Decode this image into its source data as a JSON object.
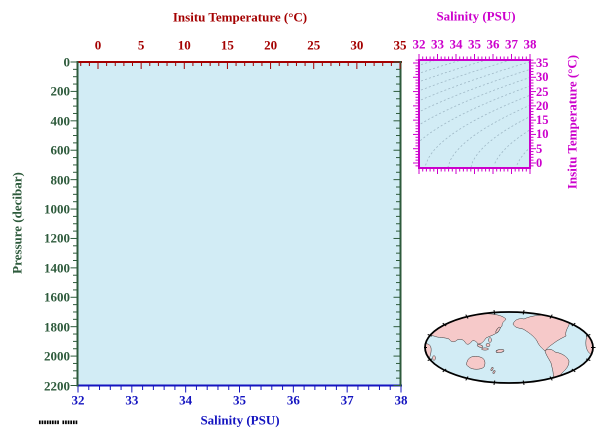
{
  "colors": {
    "temp": "#a40000",
    "sal": "#1414c0",
    "pres": "#2d5a3b",
    "ts": "#cc00cc",
    "plot_fill": "#d2ecf5",
    "contour": "#9fb8c6",
    "map_land": "#f6c9c9",
    "map_ocean": "#d2ecf5",
    "map_outline": "#000000"
  },
  "main_plot": {
    "top_axis": {
      "label": "Insitu Temperature (°C)",
      "ticks": [
        "0",
        "5",
        "10",
        "15",
        "20",
        "25",
        "30",
        "35"
      ]
    },
    "bottom_axis": {
      "label": "Salinity (PSU)",
      "ticks": [
        "32",
        "33",
        "34",
        "35",
        "36",
        "37",
        "38"
      ]
    },
    "left_axis": {
      "label": "Pressure (decibar)",
      "ticks": [
        "0",
        "200",
        "400",
        "600",
        "800",
        "1000",
        "1200",
        "1400",
        "1600",
        "1800",
        "2000",
        "2200"
      ]
    }
  },
  "ts_plot": {
    "top_axis": {
      "label": "Salinity (PSU)",
      "ticks": [
        "32",
        "33",
        "34",
        "35",
        "36",
        "37",
        "38"
      ]
    },
    "right_axis": {
      "label": "Insitu Temperature (°C)",
      "ticks": [
        "0",
        "5",
        "10",
        "15",
        "20",
        "25",
        "30",
        "35"
      ]
    }
  },
  "map": {
    "name": "global-map-pacific-centered"
  },
  "footer": {
    "stamp": "▮▮▮▮▮▮▮▮ ▮▮▮▮▮▮"
  },
  "chart_data": [
    {
      "type": "scatter",
      "title": "Insitu Temperature (°C)",
      "axes": {
        "top": {
          "label": "Insitu Temperature (°C)",
          "range": [
            -2.3,
            35.1
          ],
          "ticks": [
            0,
            5,
            10,
            15,
            20,
            25,
            30,
            35
          ],
          "minor_step": 1
        },
        "bottom": {
          "label": "Salinity (PSU)",
          "range": [
            32,
            38
          ],
          "ticks": [
            32,
            33,
            34,
            35,
            36,
            37,
            38
          ],
          "minor_step": 0.2
        },
        "left": {
          "label": "Pressure (decibar)",
          "range": [
            0,
            2200
          ],
          "ticks": [
            0,
            200,
            400,
            600,
            800,
            1000,
            1200,
            1400,
            1600,
            1800,
            2000,
            2200
          ],
          "minor_step": 50,
          "inverted": true
        }
      },
      "grid": false,
      "series": []
    },
    {
      "type": "line",
      "title": "Salinity (PSU)",
      "axes": {
        "top": {
          "label": "Salinity (PSU)",
          "range": [
            32,
            38
          ],
          "ticks": [
            32,
            33,
            34,
            35,
            36,
            37,
            38
          ],
          "minor_step": 0.2
        },
        "right": {
          "label": "Insitu Temperature (°C)",
          "range": [
            -1.8,
            36
          ],
          "ticks": [
            0,
            5,
            10,
            15,
            20,
            25,
            30,
            35
          ],
          "minor_step": 1
        }
      },
      "grid": false,
      "contours": {
        "variable": "sigma-t isopycnals",
        "levels": [
          18,
          19,
          20,
          21,
          22,
          23,
          24,
          25,
          26,
          27,
          28,
          29,
          30
        ]
      },
      "series": []
    }
  ]
}
